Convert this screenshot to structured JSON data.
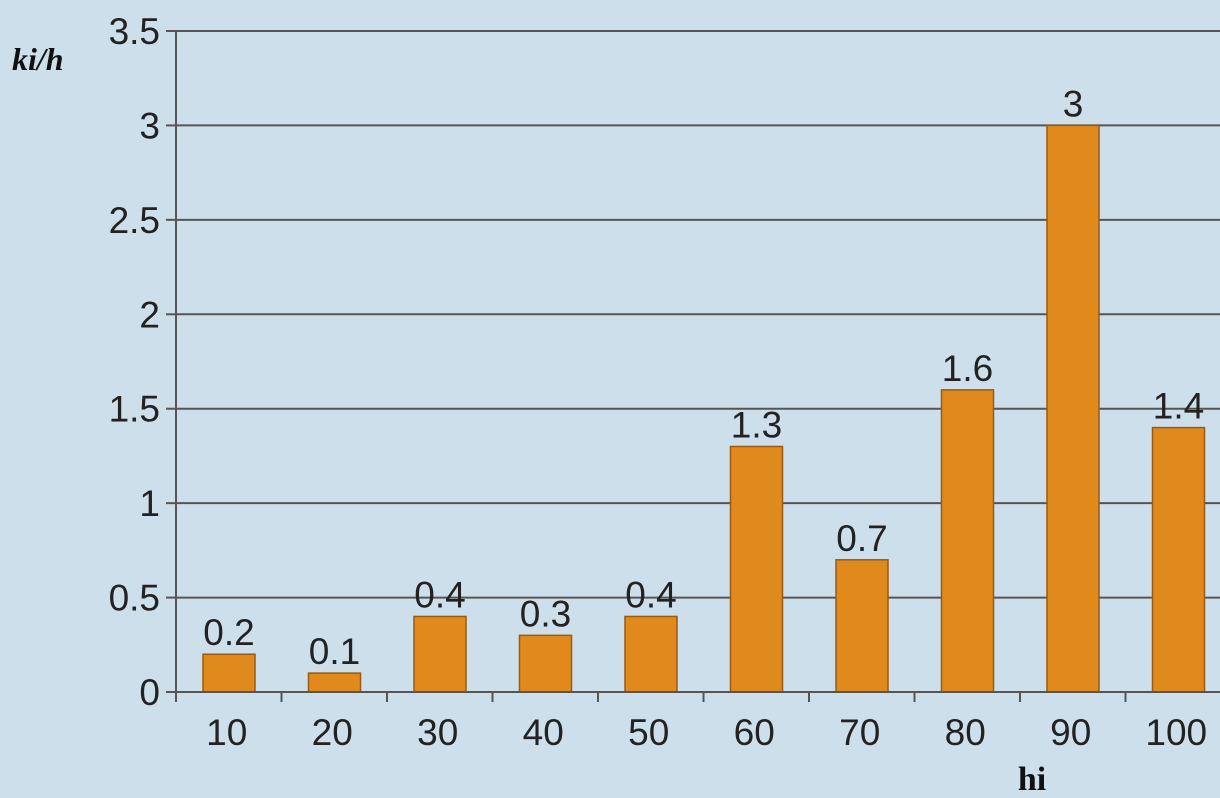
{
  "chart_data": {
    "type": "bar",
    "categories": [
      "10",
      "20",
      "30",
      "40",
      "50",
      "60",
      "70",
      "80",
      "90",
      "100"
    ],
    "series": [
      {
        "values": [
          0.2,
          0.1,
          0.4,
          0.3,
          0.4,
          1.3,
          0.7,
          1.6,
          3,
          1.4
        ],
        "color": "#e08a1e"
      }
    ],
    "data_labels": [
      "0.2",
      "0.1",
      "0.4",
      "0.3",
      "0.4",
      "1.3",
      "0.7",
      "1.6",
      "3",
      "1.4"
    ],
    "xlabel": "hi",
    "ylabel": "ki/h",
    "ylim": [
      0,
      3.5
    ],
    "yticks": [
      "0",
      "0.5",
      "1",
      "1.5",
      "2",
      "2.5",
      "3",
      "3.5"
    ],
    "grid": true,
    "legend": "none",
    "colors": {
      "background": "#cddfea",
      "bar": "#e08a1e",
      "bar_border": "#9a5a12",
      "gridline": "#555555"
    }
  }
}
